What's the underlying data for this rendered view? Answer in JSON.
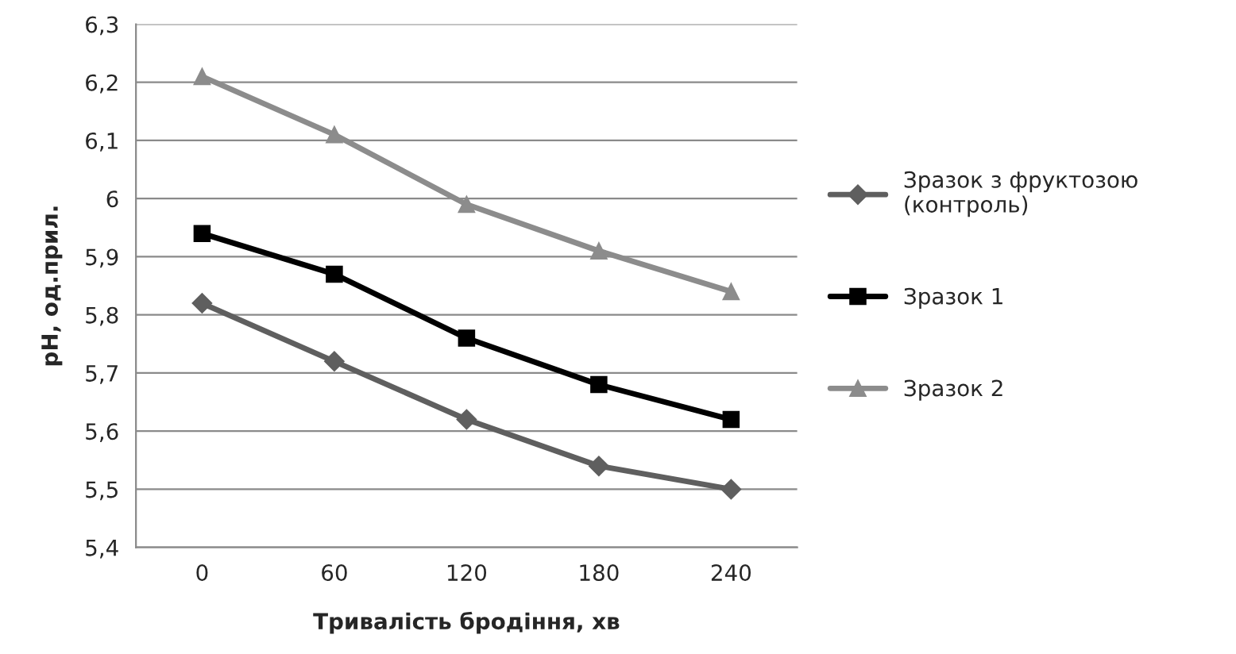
{
  "chart_data": {
    "type": "line",
    "xlabel": "Тривалість бродіння, хв",
    "ylabel": "pH, од.прил.",
    "categories": [
      "0",
      "60",
      "120",
      "180",
      "240"
    ],
    "series": [
      {
        "name": "Зразок з фруктозою\n(контроль)",
        "color": "#5f5f5f",
        "marker": "diamond",
        "values": [
          5.82,
          5.72,
          5.62,
          5.54,
          5.5
        ]
      },
      {
        "name": "Зразок 1",
        "color": "#000000",
        "marker": "square",
        "values": [
          5.94,
          5.87,
          5.76,
          5.68,
          5.62
        ]
      },
      {
        "name": "Зразок 2",
        "color": "#8c8c8c",
        "marker": "triangle",
        "values": [
          6.21,
          6.11,
          5.99,
          5.91,
          5.84
        ]
      }
    ],
    "ylim": [
      5.4,
      6.3
    ],
    "yticks": [
      {
        "value": 5.4,
        "label": "5,4"
      },
      {
        "value": 5.5,
        "label": "5,5"
      },
      {
        "value": 5.6,
        "label": "5,6"
      },
      {
        "value": 5.7,
        "label": "5,7"
      },
      {
        "value": 5.8,
        "label": "5,8"
      },
      {
        "value": 5.9,
        "label": "5,9"
      },
      6,
      {
        "value": 6.1,
        "label": "6,1"
      },
      {
        "value": 6.2,
        "label": "6,2"
      },
      {
        "value": 6.3,
        "label": "6,3"
      }
    ],
    "grid": "y",
    "legend": "right",
    "line_style": "solid"
  }
}
